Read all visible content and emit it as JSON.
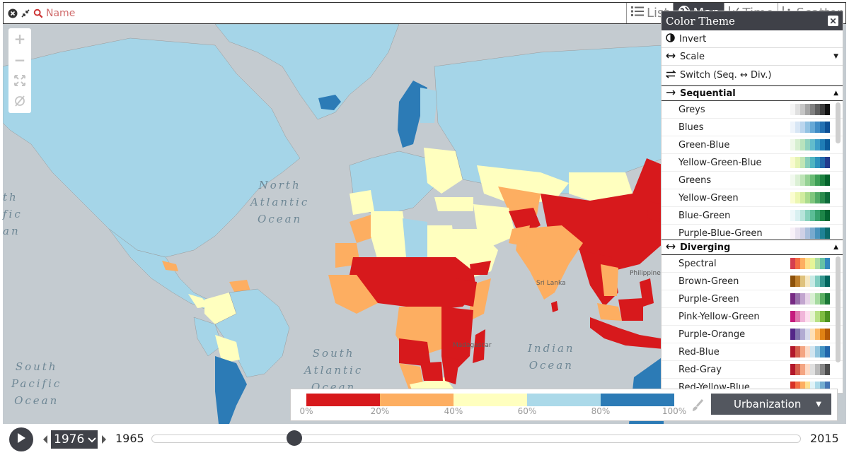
{
  "search": {
    "placeholder": "Name"
  },
  "tabs": [
    {
      "label": "List",
      "icon": "list-icon",
      "active": false
    },
    {
      "label": "Map",
      "icon": "globe-icon",
      "active": true
    },
    {
      "label": "Time",
      "icon": "line-chart-icon",
      "active": false
    },
    {
      "label": "Scatter",
      "icon": "scatter-icon",
      "active": false
    }
  ],
  "zoom": {
    "in": "+",
    "out": "−"
  },
  "theme_panel": {
    "title": "Color Theme",
    "options": {
      "invert": "Invert",
      "scale": "Scale",
      "switch": "Switch (Seq. ↔ Div.)"
    },
    "sequential": {
      "label": "Sequential",
      "palettes": [
        {
          "name": "Greys",
          "colors": [
            "#f5f5f5",
            "#e0e0e0",
            "#c6c6c6",
            "#a6a6a6",
            "#818181",
            "#5f5f5f",
            "#3d3d3d",
            "#111111"
          ]
        },
        {
          "name": "Blues",
          "colors": [
            "#eef4fb",
            "#d7e6f5",
            "#bbd6ee",
            "#93c3e3",
            "#65a8d6",
            "#3f8cc6",
            "#2370b2",
            "#0d4f95"
          ]
        },
        {
          "name": "Green-Blue",
          "colors": [
            "#eef8e9",
            "#d6efd0",
            "#b8e3bd",
            "#8fd2bf",
            "#62bccc",
            "#3d9ec8",
            "#1f7db6",
            "#0b5a9a"
          ]
        },
        {
          "name": "Yellow-Green-Blue",
          "colors": [
            "#f9fbcf",
            "#e5f4b4",
            "#c2e6b5",
            "#87cebb",
            "#4fb5c1",
            "#2c92bd",
            "#2268ab",
            "#22398d"
          ]
        },
        {
          "name": "Greens",
          "colors": [
            "#f1f9ee",
            "#dbf0d5",
            "#bde4b6",
            "#96d295",
            "#69bb74",
            "#3d9f56",
            "#1d8240",
            "#04622b"
          ]
        },
        {
          "name": "Yellow-Green",
          "colors": [
            "#fbfdd0",
            "#ecf7b1",
            "#d1ec9f",
            "#abdc8e",
            "#7fc67d",
            "#51ab66",
            "#2b8b4d",
            "#0e6b3a"
          ]
        },
        {
          "name": "Blue-Green",
          "colors": [
            "#eef8fa",
            "#d8f0f1",
            "#b7e4db",
            "#88d2bd",
            "#5bbd97",
            "#37a26f",
            "#1d8548",
            "#036431"
          ]
        },
        {
          "name": "Purple-Blue-Green",
          "colors": [
            "#f8f1f8",
            "#e6e0ee",
            "#cfd1e6",
            "#a9bfdc",
            "#78aacf",
            "#4893bd",
            "#1e8296",
            "#0b6a6a"
          ]
        }
      ]
    },
    "diverging": {
      "label": "Diverging",
      "palettes": [
        {
          "name": "Spectral",
          "colors": [
            "#d53e4f",
            "#f46d43",
            "#fdae61",
            "#fee08b",
            "#e6f598",
            "#abdda4",
            "#66c2a5",
            "#3288bd"
          ]
        },
        {
          "name": "Brown-Green",
          "colors": [
            "#8c510a",
            "#bf812d",
            "#dfc27d",
            "#f6e8c3",
            "#c7eae5",
            "#80cdc1",
            "#35978f",
            "#01665e"
          ]
        },
        {
          "name": "Purple-Green",
          "colors": [
            "#762a83",
            "#9970ab",
            "#c2a5cf",
            "#e7d4e8",
            "#d9f0d3",
            "#a6dba0",
            "#5aae61",
            "#1b7837"
          ]
        },
        {
          "name": "Pink-Yellow-Green",
          "colors": [
            "#c51b7d",
            "#de77ae",
            "#f1b6da",
            "#fde0ef",
            "#e6f5d0",
            "#b8e186",
            "#7fbc41",
            "#4d9221"
          ]
        },
        {
          "name": "Purple-Orange",
          "colors": [
            "#542788",
            "#8073ac",
            "#b2abd2",
            "#d8daeb",
            "#fee0b6",
            "#fdb863",
            "#e08214",
            "#b35806"
          ]
        },
        {
          "name": "Red-Blue",
          "colors": [
            "#b2182b",
            "#d6604d",
            "#f4a582",
            "#fddbc7",
            "#d1e5f0",
            "#92c5de",
            "#4393c3",
            "#2166ac"
          ]
        },
        {
          "name": "Red-Gray",
          "colors": [
            "#b2182b",
            "#d6604d",
            "#f4a582",
            "#fddbc7",
            "#e0e0e0",
            "#bababa",
            "#878787",
            "#4d4d4d"
          ]
        },
        {
          "name": "Red-Yellow-Blue",
          "colors": [
            "#d73027",
            "#f46d43",
            "#fdae61",
            "#fee090",
            "#e0f3f8",
            "#abd9e9",
            "#74add1",
            "#4575b4"
          ]
        }
      ]
    }
  },
  "legend": {
    "colors": [
      "#d7191c",
      "#fdae61",
      "#ffffbf",
      "#abd9e9",
      "#2c7bb6"
    ],
    "ticks": [
      "0%",
      "20%",
      "40%",
      "60%",
      "80%",
      "100%"
    ],
    "indicator": "Urbanization"
  },
  "time": {
    "current_year": "1976",
    "start_year": "1965",
    "end_year": "2015",
    "position": 0.22
  },
  "map_labels": {
    "north_atlantic": "North\nAtlantic\nOcean",
    "south_atlantic": "South\nAtlantic\nOcean",
    "south_pacific": "South\nPacific\nOcean",
    "indian": "Indian\nOcean",
    "north_pacific_fragment": "th\nfic\nan",
    "sri_lanka": "Sri Lanka",
    "madagascar": "Madagascar",
    "philippines": "Philippines"
  },
  "colors": {
    "ocean": "#c4cbd0",
    "land_nodata": "#a5d5e8",
    "accent_dark": "#3f4148"
  }
}
